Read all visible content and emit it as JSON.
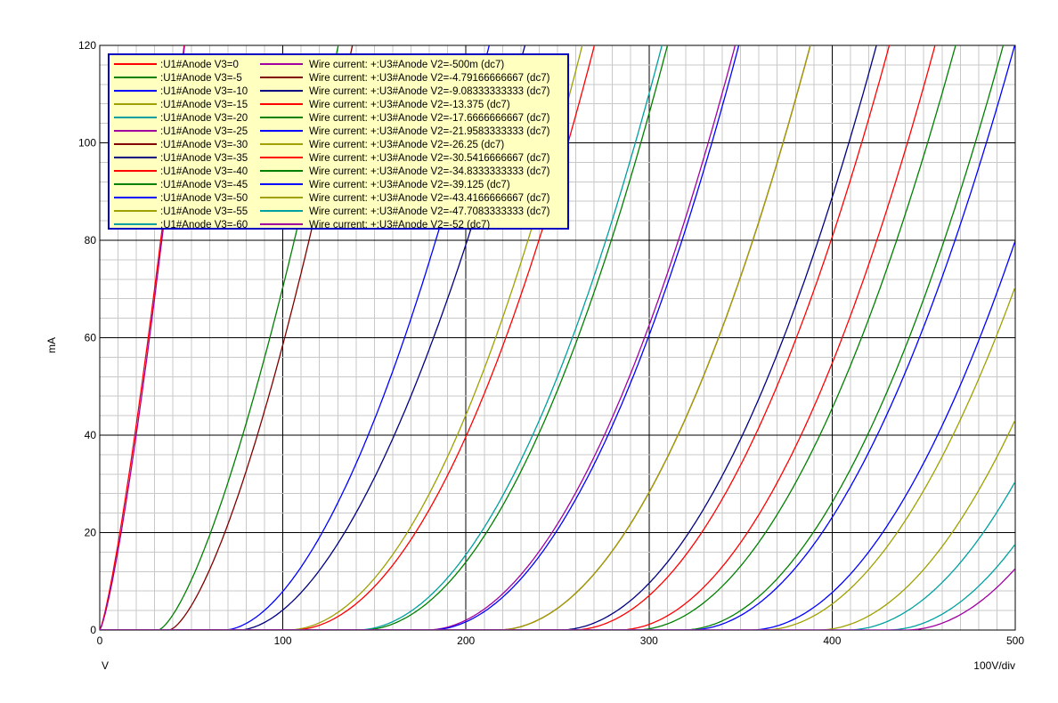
{
  "chart_data": {
    "type": "line",
    "title": "",
    "xlabel": "",
    "ylabel": "mA",
    "x_unit": "V",
    "x_scale": "100V/div",
    "xlim": [
      0,
      500
    ],
    "ylim": [
      0,
      120
    ],
    "x_ticks": [
      "0",
      "100",
      "200",
      "300",
      "400",
      "500"
    ],
    "y_ticks": [
      "0",
      "20",
      "40",
      "60",
      "80",
      "100",
      "120"
    ],
    "grid": true,
    "legend_position": "top-left",
    "colors": {
      "red": "#ff0000",
      "green": "#008000",
      "blue": "#0000ff",
      "olive": "#a0a000",
      "teal": "#00a0a0",
      "purple": "#a000a0",
      "maroon": "#800000",
      "navy": "#000080"
    },
    "series": [
      {
        "name": ":U1#Anode V3=0",
        "color": "#ff0000",
        "k": 1.0,
        "v0": 0,
        "n": 1.25
      },
      {
        "name": ":U1#Anode V3=-5",
        "color": "#008000",
        "k": 0.155,
        "v0": 32,
        "n": 1.45
      },
      {
        "name": ":U1#Anode V3=-10",
        "color": "#0000ff",
        "k": 0.0155,
        "v0": 68,
        "n": 1.8
      },
      {
        "name": ":U1#Anode V3=-15",
        "color": "#a0a000",
        "k": 0.0046,
        "v0": 102,
        "n": 2.0
      },
      {
        "name": ":U1#Anode V3=-20",
        "color": "#00a0a0",
        "k": 0.0043,
        "v0": 140,
        "n": 2.0
      },
      {
        "name": ":U1#Anode V3=-25",
        "color": "#a000a0",
        "k": 0.0042,
        "v0": 178,
        "n": 2.0
      },
      {
        "name": ":U1#Anode V3=-30",
        "color": "#800000",
        "k": 0.0041,
        "v0": 217,
        "n": 2.0
      },
      {
        "name": ":U1#Anode V3=-35",
        "color": "#000080",
        "k": 0.004,
        "v0": 251,
        "n": 2.0
      },
      {
        "name": ":U1#Anode V3=-40",
        "color": "#ff0000",
        "k": 0.004,
        "v0": 283,
        "n": 2.0
      },
      {
        "name": ":U1#Anode V3=-45",
        "color": "#008000",
        "k": 0.0039,
        "v0": 318,
        "n": 2.0
      },
      {
        "name": ":U1#Anode V3=-50",
        "color": "#0000ff",
        "k": 0.0038,
        "v0": 355,
        "n": 2.0
      },
      {
        "name": ":U1#Anode V3=-55",
        "color": "#a0a000",
        "k": 0.0037,
        "v0": 392,
        "n": 2.0
      },
      {
        "name": ":U1#Anode V3=-60",
        "color": "#00a0a0",
        "k": 0.0036,
        "v0": 430,
        "n": 2.0
      },
      {
        "name": "Wire current: +:U3#Anode V2=-500m (dc7)",
        "color": "#a000a0",
        "k": 0.82,
        "v0": 0,
        "n": 1.3
      },
      {
        "name": "Wire current: +:U3#Anode V2=-4.79166666667 (dc7)",
        "color": "#800000",
        "k": 0.12,
        "v0": 38,
        "n": 1.5
      },
      {
        "name": "Wire current: +:U3#Anode V2=-9.08333333333 (dc7)",
        "color": "#000080",
        "k": 0.0135,
        "v0": 76,
        "n": 1.8
      },
      {
        "name": "Wire current: +:U3#Anode V2=-13.375 (dc7)",
        "color": "#ff0000",
        "k": 0.0044,
        "v0": 105,
        "n": 2.0
      },
      {
        "name": "Wire current: +:U3#Anode V2=-17.6666666667 (dc7)",
        "color": "#008000",
        "k": 0.0043,
        "v0": 143,
        "n": 2.0
      },
      {
        "name": "Wire current: +:U3#Anode V2=-21.9583333333 (dc7)",
        "color": "#0000ff",
        "k": 0.0042,
        "v0": 180,
        "n": 2.0
      },
      {
        "name": "Wire current: +:U3#Anode V2=-26.25 (dc7)",
        "color": "#a0a000",
        "k": 0.0041,
        "v0": 217,
        "n": 2.0
      },
      {
        "name": "Wire current: +:U3#Anode V2=-30.5416666667 (dc7)",
        "color": "#ff0000",
        "k": 0.004,
        "v0": 258,
        "n": 2.0
      },
      {
        "name": "Wire current: +:U3#Anode V2=-34.8333333333 (dc7)",
        "color": "#008000",
        "k": 0.0039,
        "v0": 292,
        "n": 2.0
      },
      {
        "name": "Wire current: +:U3#Anode V2=-39.125 (dc7)",
        "color": "#0000ff",
        "k": 0.0038,
        "v0": 322,
        "n": 2.0
      },
      {
        "name": "Wire current: +:U3#Anode V2=-43.4166666667 (dc7)",
        "color": "#a0a000",
        "k": 0.0037,
        "v0": 362,
        "n": 2.0
      },
      {
        "name": "Wire current: +:U3#Anode V2=-47.7083333333 (dc7)",
        "color": "#00a0a0",
        "k": 0.0036,
        "v0": 408,
        "n": 2.0
      },
      {
        "name": "Wire current: +:U3#Anode V2=-52 (dc7)",
        "color": "#a000a0",
        "k": 0.0035,
        "v0": 440,
        "n": 2.0
      }
    ]
  }
}
